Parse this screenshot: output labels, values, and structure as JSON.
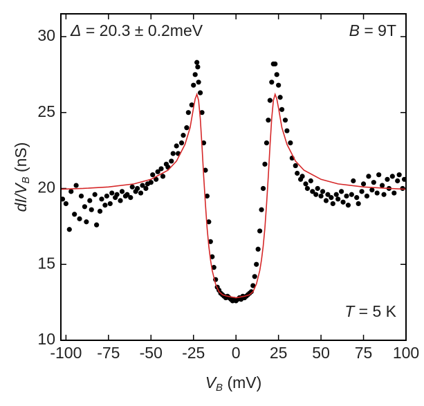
{
  "chart_data": {
    "type": "scatter",
    "xlabel": {
      "main": "V",
      "sub": "B",
      "unit": " (mV)"
    },
    "ylabel": {
      "main": "dI/V",
      "sub": "B",
      "unit": " (nS)"
    },
    "annotations": [
      {
        "symbol": "Δ",
        "text": " = 20.3 ± 0.2meV",
        "corner": "top-left"
      },
      {
        "symbol": "B",
        "text": " = 9T",
        "corner": "top-right"
      },
      {
        "symbol": "T",
        "text": " = 5 K",
        "corner": "bottom-right"
      }
    ],
    "xlim": [
      -103,
      100
    ],
    "ylim": [
      10,
      31.5
    ],
    "xticks": [
      -100,
      -75,
      -50,
      -25,
      0,
      25,
      50,
      75,
      100
    ],
    "yticks": [
      10,
      15,
      20,
      25,
      30
    ],
    "series": [
      {
        "kind": "points",
        "color": "#000000",
        "x": [
          -102,
          -100,
          -98,
          -97,
          -95,
          -94,
          -92,
          -91,
          -89,
          -88,
          -86,
          -85,
          -83,
          -82,
          -80,
          -79,
          -77,
          -76,
          -74,
          -73,
          -71,
          -70,
          -68,
          -67,
          -65,
          -64,
          -62,
          -61,
          -59,
          -58,
          -56,
          -55,
          -53,
          -52,
          -50,
          -49,
          -47,
          -46,
          -44,
          -43,
          -41,
          -40,
          -38,
          -37,
          -35,
          -34,
          -32,
          -31,
          -29,
          -28,
          -26,
          -25,
          -24,
          -23,
          -22.5,
          -22,
          -21,
          -20,
          -19,
          -18,
          -17,
          -16,
          -15,
          -14,
          -13,
          -12,
          -11,
          -10,
          -9,
          -8,
          -7,
          -6,
          -5,
          -4,
          -3,
          -2,
          -1,
          0,
          1,
          2,
          3,
          4,
          5,
          6,
          7,
          8,
          9,
          10,
          11,
          12,
          13,
          14,
          15,
          16,
          17,
          18,
          19,
          20,
          21,
          22,
          23,
          24,
          25,
          26,
          27,
          29,
          30,
          32,
          33,
          35,
          36,
          38,
          39,
          41,
          42,
          44,
          45,
          47,
          48,
          50,
          51,
          53,
          54,
          56,
          57,
          59,
          60,
          62,
          63,
          65,
          66,
          68,
          69,
          71,
          72,
          74,
          75,
          77,
          78,
          80,
          81,
          83,
          84,
          86,
          87,
          89,
          90,
          92,
          93,
          95,
          96,
          98,
          99
        ],
        "values": [
          19.3,
          19.0,
          17.3,
          19.8,
          18.3,
          20.2,
          18.0,
          19.5,
          18.8,
          17.8,
          19.2,
          18.6,
          19.6,
          17.6,
          18.5,
          19.3,
          18.9,
          19.5,
          19.0,
          19.7,
          19.4,
          19.6,
          19.2,
          19.8,
          19.5,
          19.6,
          19.4,
          20.1,
          19.8,
          20.0,
          19.7,
          20.2,
          20.0,
          20.3,
          20.4,
          20.9,
          20.6,
          21.1,
          21.3,
          20.8,
          21.6,
          21.4,
          21.8,
          22.3,
          22.8,
          22.3,
          23.0,
          23.5,
          24.0,
          25.0,
          25.5,
          26.8,
          27.5,
          28.3,
          28.0,
          27.0,
          26.3,
          25.0,
          23.0,
          21.2,
          19.5,
          17.8,
          16.5,
          15.5,
          14.8,
          14.0,
          13.5,
          13.3,
          13.1,
          13.0,
          12.9,
          12.8,
          12.9,
          12.8,
          12.7,
          12.6,
          12.7,
          12.6,
          12.7,
          12.8,
          12.7,
          12.9,
          12.8,
          12.9,
          13.0,
          13.1,
          13.2,
          13.6,
          14.2,
          15.0,
          16.0,
          17.2,
          18.6,
          20.0,
          21.6,
          23.0,
          24.5,
          25.8,
          27.0,
          28.2,
          28.2,
          27.5,
          26.8,
          26.0,
          25.2,
          24.5,
          23.8,
          23.0,
          22.0,
          21.5,
          21.0,
          20.6,
          20.8,
          20.3,
          20.0,
          20.5,
          19.8,
          19.6,
          20.0,
          19.5,
          19.8,
          19.2,
          19.6,
          19.4,
          19.0,
          19.6,
          19.3,
          19.8,
          19.1,
          19.5,
          18.9,
          19.6,
          20.5,
          19.4,
          19.0,
          19.8,
          20.3,
          19.5,
          20.8,
          19.9,
          20.4,
          19.7,
          20.9,
          20.2,
          19.6,
          20.6,
          20.0,
          20.8,
          19.7,
          20.5,
          20.9,
          20.0,
          20.6
        ]
      },
      {
        "kind": "line",
        "color": "#d62728",
        "x": [
          -103,
          -90,
          -75,
          -60,
          -50,
          -40,
          -35,
          -30,
          -27,
          -25,
          -24,
          -23,
          -22,
          -21,
          -20,
          -19,
          -18,
          -17,
          -16,
          -15,
          -14,
          -12,
          -10,
          -8,
          -5,
          0,
          5,
          8,
          10,
          12,
          14,
          15,
          16,
          17,
          18,
          19,
          20,
          21,
          22,
          23,
          24,
          25,
          27,
          30,
          35,
          40,
          50,
          60,
          75,
          90,
          100
        ],
        "values": [
          19.95,
          20.0,
          20.1,
          20.3,
          20.6,
          21.2,
          21.8,
          22.9,
          24.0,
          25.3,
          25.9,
          26.2,
          25.8,
          24.6,
          22.8,
          20.8,
          19.0,
          17.4,
          16.2,
          15.3,
          14.6,
          13.7,
          13.2,
          13.0,
          12.9,
          12.8,
          12.9,
          13.0,
          13.2,
          13.7,
          14.6,
          15.3,
          16.2,
          17.4,
          19.0,
          20.8,
          22.8,
          24.6,
          25.8,
          26.2,
          25.9,
          25.3,
          24.0,
          22.9,
          21.8,
          21.2,
          20.6,
          20.3,
          20.1,
          20.0,
          19.95
        ]
      }
    ]
  }
}
